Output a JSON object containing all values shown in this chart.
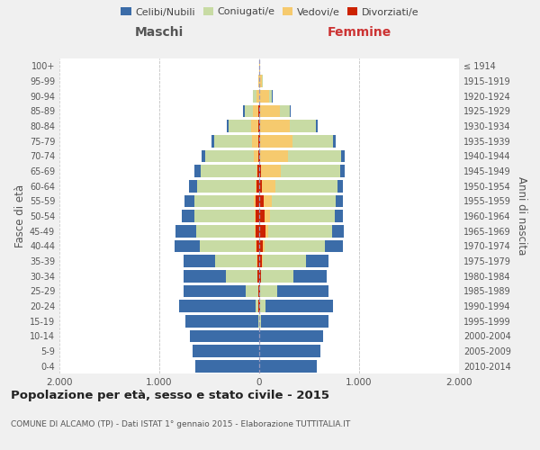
{
  "age_groups": [
    "0-4",
    "5-9",
    "10-14",
    "15-19",
    "20-24",
    "25-29",
    "30-34",
    "35-39",
    "40-44",
    "45-49",
    "50-54",
    "55-59",
    "60-64",
    "65-69",
    "70-74",
    "75-79",
    "80-84",
    "85-89",
    "90-94",
    "95-99",
    "100+"
  ],
  "birth_years": [
    "2010-2014",
    "2005-2009",
    "2000-2004",
    "1995-1999",
    "1990-1994",
    "1985-1989",
    "1980-1984",
    "1975-1979",
    "1970-1974",
    "1965-1969",
    "1960-1964",
    "1955-1959",
    "1950-1954",
    "1945-1949",
    "1940-1944",
    "1935-1939",
    "1930-1934",
    "1925-1929",
    "1920-1924",
    "1915-1919",
    "≤ 1914"
  ],
  "male": {
    "celibi": [
      640,
      670,
      690,
      730,
      770,
      620,
      430,
      310,
      250,
      200,
      130,
      100,
      80,
      60,
      40,
      30,
      20,
      15,
      5,
      2,
      0
    ],
    "coniugati": [
      0,
      0,
      0,
      10,
      30,
      130,
      310,
      420,
      560,
      590,
      600,
      600,
      580,
      560,
      490,
      380,
      220,
      80,
      30,
      5,
      0
    ],
    "vedovi": [
      0,
      0,
      0,
      0,
      0,
      0,
      5,
      5,
      5,
      5,
      5,
      10,
      10,
      15,
      40,
      60,
      80,
      60,
      30,
      5,
      0
    ],
    "divorziati": [
      0,
      0,
      0,
      0,
      5,
      5,
      15,
      20,
      30,
      40,
      40,
      40,
      30,
      15,
      10,
      10,
      5,
      5,
      0,
      0,
      0
    ]
  },
  "female": {
    "nubili": [
      580,
      610,
      640,
      680,
      680,
      510,
      340,
      230,
      180,
      120,
      80,
      70,
      55,
      45,
      35,
      25,
      20,
      10,
      5,
      2,
      0
    ],
    "coniugate": [
      0,
      0,
      0,
      15,
      50,
      170,
      320,
      430,
      600,
      640,
      650,
      640,
      620,
      590,
      530,
      410,
      260,
      100,
      30,
      5,
      0
    ],
    "vedove": [
      0,
      0,
      0,
      0,
      5,
      5,
      5,
      10,
      15,
      30,
      50,
      80,
      130,
      200,
      280,
      320,
      300,
      200,
      100,
      30,
      5
    ],
    "divorziate": [
      0,
      0,
      0,
      0,
      5,
      5,
      15,
      25,
      40,
      60,
      55,
      45,
      30,
      20,
      10,
      10,
      5,
      5,
      0,
      0,
      0
    ]
  },
  "colors": {
    "celibi": "#3b6ca8",
    "coniugati": "#c8dba4",
    "vedovi": "#f6ca6e",
    "divorziati": "#cc2200"
  },
  "legend_labels": [
    "Celibi/Nubili",
    "Coniugati/e",
    "Vedovi/e",
    "Divorziati/e"
  ],
  "xlim": 2000,
  "title": "Popolazione per età, sesso e stato civile - 2015",
  "subtitle": "COMUNE DI ALCAMO (TP) - Dati ISTAT 1° gennaio 2015 - Elaborazione TUTTITALIA.IT",
  "xlabel_left": "Maschi",
  "xlabel_right": "Femmine",
  "ylabel_left": "Fasce di età",
  "ylabel_right": "Anni di nascita",
  "bg_color": "#f0f0f0",
  "plot_bg_color": "#ffffff",
  "grid_color": "#cccccc"
}
